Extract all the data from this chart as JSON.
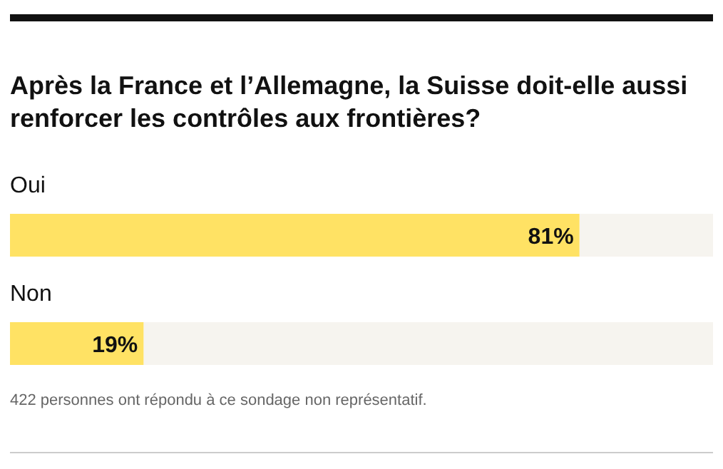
{
  "chart_data": {
    "type": "bar",
    "orientation": "horizontal",
    "title": "Après la France et l’Allemagne, la Suisse doit-elle aussi renforcer les contrôles aux frontières?",
    "categories": [
      "Oui",
      "Non"
    ],
    "values": [
      81,
      19
    ],
    "value_labels": [
      "81%",
      "19%"
    ],
    "color": "#ffe264",
    "xlim": [
      0,
      100
    ],
    "annotations": [
      "422 personnes ont répondu à ce sondage non représentatif."
    ]
  }
}
